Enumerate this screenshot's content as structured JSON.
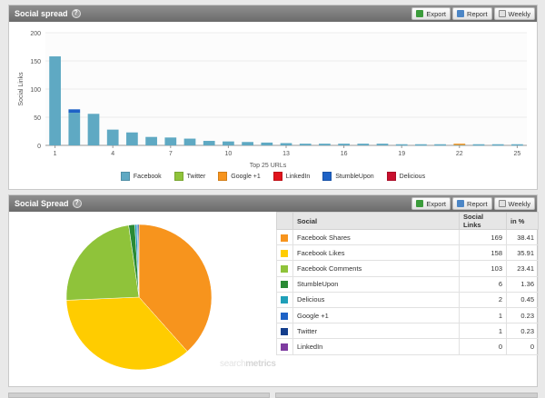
{
  "top_panel": {
    "title": "Social spread",
    "actions": {
      "export": "Export",
      "report": "Report",
      "weekly": "Weekly"
    }
  },
  "bottom_panel": {
    "title": "Social Spread",
    "actions": {
      "export": "Export",
      "report": "Report",
      "weekly": "Weekly"
    }
  },
  "watermark": {
    "prefix": "search",
    "suffix": "metrics"
  },
  "colors": {
    "facebook": "#5fa9c3",
    "twitter": "#8fc33a",
    "google": "#f7941d",
    "linkedin": "#e1141c",
    "stumbleupon": "#1e62c6",
    "delicious": "#c8102e"
  },
  "chart_data": [
    {
      "type": "bar",
      "xlabel": "Top 25 URLs",
      "ylabel": "Social Links",
      "ylim": [
        0,
        200
      ],
      "yticks": [
        0,
        50,
        100,
        150,
        200
      ],
      "xticks": [
        1,
        4,
        7,
        10,
        13,
        16,
        19,
        22,
        25
      ],
      "categories": [
        1,
        2,
        3,
        4,
        5,
        6,
        7,
        8,
        9,
        10,
        11,
        12,
        13,
        14,
        15,
        16,
        17,
        18,
        19,
        20,
        21,
        22,
        23,
        24,
        25
      ],
      "series": [
        {
          "name": "Facebook",
          "color": "#5fa9c3",
          "values": [
            158,
            58,
            56,
            28,
            23,
            15,
            14,
            12,
            8,
            7,
            6,
            5,
            4,
            3,
            3,
            3,
            3,
            3,
            2,
            2,
            2,
            2,
            2,
            2,
            2
          ]
        },
        {
          "name": "Twitter",
          "color": "#8fc33a",
          "values": [
            0,
            0,
            0,
            0,
            0,
            0,
            0,
            0,
            0,
            0,
            0,
            0,
            0,
            0,
            0,
            0,
            0,
            0,
            0,
            0,
            0,
            0,
            0,
            0,
            0
          ]
        },
        {
          "name": "Google +1",
          "color": "#f7941d",
          "values": [
            0,
            0,
            0,
            0,
            0,
            0,
            0,
            0,
            0,
            0,
            0,
            0,
            0,
            0,
            0,
            0,
            0,
            0,
            0,
            0,
            0,
            1,
            0,
            0,
            0
          ]
        },
        {
          "name": "LinkedIn",
          "color": "#e1141c",
          "values": [
            0,
            0,
            0,
            0,
            0,
            0,
            0,
            0,
            0,
            0,
            0,
            0,
            0,
            0,
            0,
            0,
            0,
            0,
            0,
            0,
            0,
            0,
            0,
            0,
            0
          ]
        },
        {
          "name": "StumbleUpon",
          "color": "#1e62c6",
          "values": [
            0,
            6,
            0,
            0,
            0,
            0,
            0,
            0,
            0,
            0,
            0,
            0,
            0,
            0,
            0,
            0,
            0,
            0,
            0,
            0,
            0,
            0,
            0,
            0,
            0
          ]
        },
        {
          "name": "Delicious",
          "color": "#c8102e",
          "values": [
            0,
            0,
            0,
            0,
            0,
            0,
            0,
            0,
            0,
            0,
            0,
            0,
            0,
            0,
            0,
            0,
            0,
            0,
            0,
            0,
            0,
            0,
            0,
            0,
            0
          ]
        }
      ],
      "grid": true,
      "legend": "bottom"
    },
    {
      "type": "pie",
      "slices": [
        {
          "label": "Facebook Shares",
          "value": 169,
          "color": "#f7941d"
        },
        {
          "label": "Facebook Likes",
          "value": 158,
          "color": "#ffcc00"
        },
        {
          "label": "Facebook Comments",
          "value": 103,
          "color": "#8fc33a"
        },
        {
          "label": "StumbleUpon",
          "value": 6,
          "color": "#2a8a35"
        },
        {
          "label": "Delicious",
          "value": 2,
          "color": "#1f9fb8"
        },
        {
          "label": "Google +1",
          "value": 1,
          "color": "#1e62c6"
        },
        {
          "label": "Twitter",
          "value": 1,
          "color": "#143e8c"
        },
        {
          "label": "LinkedIn",
          "value": 0,
          "color": "#7e3ba0"
        }
      ]
    }
  ],
  "table": {
    "headers": {
      "social": "Social",
      "links": "Social Links",
      "pct": "in %"
    },
    "rows": [
      {
        "name": "Facebook Shares",
        "links": "169",
        "pct": "38.41",
        "color": "#f7941d"
      },
      {
        "name": "Facebook Likes",
        "links": "158",
        "pct": "35.91",
        "color": "#ffcc00"
      },
      {
        "name": "Facebook Comments",
        "links": "103",
        "pct": "23.41",
        "color": "#8fc33a"
      },
      {
        "name": "StumbleUpon",
        "links": "6",
        "pct": "1.36",
        "color": "#2a8a35"
      },
      {
        "name": "Delicious",
        "links": "2",
        "pct": "0.45",
        "color": "#1f9fb8"
      },
      {
        "name": "Google +1",
        "links": "1",
        "pct": "0.23",
        "color": "#1e62c6"
      },
      {
        "name": "Twitter",
        "links": "1",
        "pct": "0.23",
        "color": "#143e8c"
      },
      {
        "name": "LinkedIn",
        "links": "0",
        "pct": "0",
        "color": "#7e3ba0"
      }
    ]
  }
}
